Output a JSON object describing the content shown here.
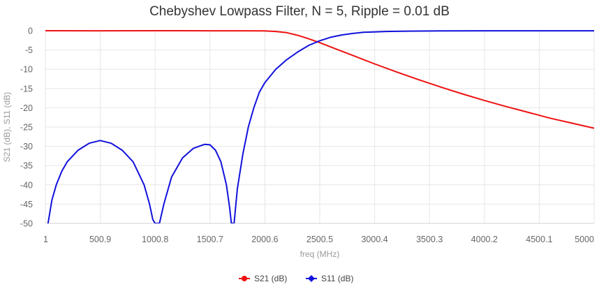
{
  "chart_data": {
    "type": "line",
    "title": "Chebyshev Lowpass Filter, N = 5, Ripple = 0.01 dB",
    "xlabel": "freq (MHz)",
    "ylabel": "S21 (dB), S11 (dB)",
    "xlim": [
      1,
      5000
    ],
    "ylim": [
      -50,
      0
    ],
    "x_ticks": [
      "1",
      "500.9",
      "1000.8",
      "1500.7",
      "2000.6",
      "2500.5",
      "3000.4",
      "3500.3",
      "4000.2",
      "4500.1",
      "5000"
    ],
    "y_ticks": [
      "0",
      "-5",
      "-10",
      "-15",
      "-20",
      "-25",
      "-30",
      "-35",
      "-40",
      "-45",
      "-50"
    ],
    "grid": true,
    "legend_position": "bottom",
    "series": [
      {
        "name": "S21 (dB)",
        "color": "#ee1111",
        "x": [
          1,
          500,
          1000,
          1500,
          1800,
          2000,
          2100,
          2200,
          2300,
          2400,
          2500,
          2600,
          2700,
          2800,
          2900,
          3000,
          3200,
          3400,
          3600,
          3800,
          4000,
          4200,
          4400,
          4600,
          4800,
          5000
        ],
        "y": [
          0,
          -0.01,
          0,
          -0.01,
          -0.01,
          -0.05,
          -0.2,
          -0.5,
          -1.2,
          -2.1,
          -3.1,
          -4.2,
          -5.3,
          -6.4,
          -7.5,
          -8.6,
          -10.7,
          -12.7,
          -14.6,
          -16.4,
          -18.1,
          -19.7,
          -21.2,
          -22.7,
          -24.0,
          -25.3
        ]
      },
      {
        "name": "S11 (dB)",
        "color": "#1111dd",
        "x": [
          25,
          60,
          100,
          150,
          200,
          300,
          400,
          500,
          600,
          700,
          800,
          900,
          950,
          980,
          1000,
          1040,
          1080,
          1150,
          1250,
          1350,
          1450,
          1500,
          1550,
          1600,
          1650,
          1680,
          1695,
          1720,
          1750,
          1800,
          1850,
          1900,
          1950,
          2000,
          2100,
          2200,
          2300,
          2400,
          2500,
          2600,
          2700,
          2800,
          2900,
          3000,
          3100,
          3300,
          3600,
          4000,
          4500,
          5000
        ],
        "y": [
          -50,
          -44,
          -40,
          -36.5,
          -34,
          -31,
          -29.2,
          -28.5,
          -29.2,
          -31,
          -34,
          -40,
          -45,
          -49,
          -50,
          -50,
          -45,
          -38,
          -33,
          -30.5,
          -29.5,
          -29.6,
          -31,
          -34,
          -40,
          -46,
          -50,
          -50,
          -41,
          -32,
          -25,
          -20,
          -16,
          -13.5,
          -10,
          -7.5,
          -5.5,
          -3.8,
          -2.6,
          -1.7,
          -1.1,
          -0.7,
          -0.4,
          -0.3,
          -0.2,
          -0.1,
          -0.05,
          -0.02,
          -0.01,
          -0.01
        ]
      }
    ]
  }
}
